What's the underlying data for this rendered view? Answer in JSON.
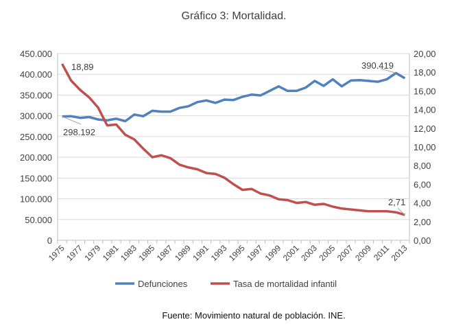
{
  "chart_data": {
    "type": "line",
    "title": "Gráfico 3: Mortalidad.",
    "source": "Fuente: Movimiento natural de población. INE.",
    "x": [
      1975,
      1976,
      1977,
      1978,
      1979,
      1980,
      1981,
      1982,
      1983,
      1984,
      1985,
      1986,
      1987,
      1988,
      1989,
      1990,
      1991,
      1992,
      1993,
      1994,
      1995,
      1996,
      1997,
      1998,
      1999,
      2000,
      2001,
      2002,
      2003,
      2004,
      2005,
      2006,
      2007,
      2008,
      2009,
      2010,
      2011,
      2012,
      2013
    ],
    "x_tick_labels": [
      "1975",
      "1977",
      "1979",
      "1981",
      "1983",
      "1985",
      "1987",
      "1989",
      "1991",
      "1993",
      "1995",
      "1997",
      "1999",
      "2001",
      "2003",
      "2005",
      "2007",
      "2009",
      "2011",
      "2013"
    ],
    "y_left": {
      "ylim": [
        0,
        450000
      ],
      "tick_labels": [
        "0",
        "50.000",
        "100.000",
        "150.000",
        "200.000",
        "250.000",
        "300.000",
        "350.000",
        "400.000",
        "450.000"
      ]
    },
    "y_right": {
      "ylim": [
        0,
        20
      ],
      "tick_labels": [
        "0,00",
        "2,00",
        "4,00",
        "6,00",
        "8,00",
        "10,00",
        "12,00",
        "14,00",
        "16,00",
        "18,00",
        "20,00"
      ]
    },
    "grid": true,
    "legend_position": "bottom",
    "series": [
      {
        "name": "Defunciones",
        "axis": "left",
        "color": "#4F81BD",
        "values": [
          298192,
          299000,
          295000,
          297000,
          291000,
          289000,
          293000,
          287000,
          303000,
          299000,
          312000,
          310000,
          310000,
          319000,
          323000,
          333000,
          337000,
          331000,
          339000,
          338000,
          346000,
          351000,
          349000,
          360000,
          371000,
          360000,
          360000,
          368000,
          384000,
          372000,
          388000,
          371000,
          385000,
          386000,
          384000,
          382000,
          388000,
          403000,
          390419
        ]
      },
      {
        "name": "Tasa de mortalidad infantil",
        "axis": "right",
        "color": "#C0504D",
        "values": [
          18.89,
          17.1,
          16.1,
          15.3,
          14.2,
          12.3,
          12.4,
          11.3,
          10.8,
          9.8,
          8.9,
          9.1,
          8.8,
          8.1,
          7.8,
          7.6,
          7.2,
          7.1,
          6.7,
          6.0,
          5.4,
          5.5,
          5.0,
          4.8,
          4.4,
          4.3,
          4.0,
          4.1,
          3.8,
          3.9,
          3.6,
          3.4,
          3.3,
          3.2,
          3.1,
          3.1,
          3.1,
          3.0,
          2.71
        ]
      }
    ],
    "annotations": [
      "18,89",
      "298.192",
      "390.419",
      "2,71"
    ]
  }
}
